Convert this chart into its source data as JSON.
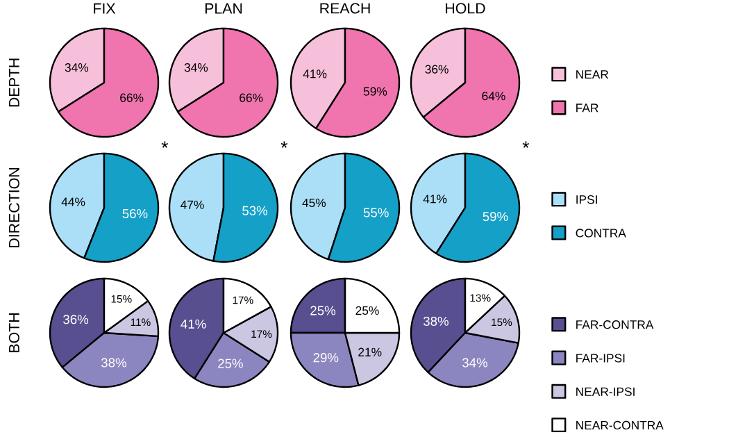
{
  "chart_data": [
    {
      "type": "pie",
      "title": "FIX",
      "ylabel": "DEPTH",
      "categories": [
        null,
        null
      ],
      "values": [
        34,
        66
      ],
      "colors": [
        "#f7c0da",
        "#f075ae"
      ],
      "value_labels": [
        "34%",
        "66%"
      ],
      "annotations": [
        "*"
      ]
    },
    {
      "type": "pie",
      "title": "PLAN",
      "categories": [
        null,
        null
      ],
      "values": [
        34,
        66
      ],
      "colors": [
        "#f7c0da",
        "#f075ae"
      ],
      "value_labels": [
        "34%",
        "66%"
      ],
      "annotations": [
        "*"
      ]
    },
    {
      "type": "pie",
      "title": "REACH",
      "categories": [
        null,
        null
      ],
      "values": [
        41,
        59
      ],
      "colors": [
        "#f7c0da",
        "#f075ae"
      ],
      "value_labels": [
        "41%",
        "59%"
      ]
    },
    {
      "type": "pie",
      "title": "HOLD",
      "categories": [
        "NEAR",
        "FAR"
      ],
      "values": [
        36,
        64
      ],
      "colors": [
        "#f7c0da",
        "#f075ae"
      ],
      "value_labels": [
        "36%",
        "64%"
      ],
      "annotations": [
        "*"
      ],
      "legend": "right"
    },
    {
      "type": "pie",
      "ylabel": "DIRECTION",
      "categories": [
        null,
        null
      ],
      "values": [
        44,
        56
      ],
      "colors": [
        "#aadff7",
        "#15a0c8"
      ],
      "value_labels": [
        "44%",
        "56%"
      ]
    },
    {
      "type": "pie",
      "categories": [
        null,
        null
      ],
      "values": [
        47,
        53
      ],
      "colors": [
        "#aadff7",
        "#15a0c8"
      ],
      "value_labels": [
        "47%",
        "53%"
      ]
    },
    {
      "type": "pie",
      "categories": [
        null,
        null
      ],
      "values": [
        45,
        55
      ],
      "colors": [
        "#aadff7",
        "#15a0c8"
      ],
      "value_labels": [
        "45%",
        "55%"
      ]
    },
    {
      "type": "pie",
      "categories": [
        "IPSI",
        "CONTRA"
      ],
      "values": [
        41,
        59
      ],
      "colors": [
        "#aadff7",
        "#15a0c8"
      ],
      "value_labels": [
        "41%",
        "59%"
      ],
      "legend": "right"
    },
    {
      "type": "pie",
      "ylabel": "BOTH",
      "categories": [
        null,
        null,
        null,
        null
      ],
      "values": [
        36,
        38,
        11,
        15
      ],
      "colors": [
        "#574f90",
        "#8c86c0",
        "#cbc6e2",
        "#ffffff"
      ],
      "value_labels": [
        "36%",
        "38%",
        "11%",
        "15%"
      ]
    },
    {
      "type": "pie",
      "categories": [
        null,
        null,
        null,
        null
      ],
      "values": [
        41,
        25,
        17,
        17
      ],
      "colors": [
        "#574f90",
        "#8c86c0",
        "#cbc6e2",
        "#ffffff"
      ],
      "value_labels": [
        "41%",
        "25%",
        "17%",
        "17%"
      ]
    },
    {
      "type": "pie",
      "categories": [
        null,
        null,
        null,
        null
      ],
      "values": [
        25,
        29,
        21,
        25
      ],
      "colors": [
        "#574f90",
        "#8c86c0",
        "#cbc6e2",
        "#ffffff"
      ],
      "value_labels": [
        "25%",
        "29%",
        "21%",
        "25%"
      ]
    },
    {
      "type": "pie",
      "categories": [
        "FAR-CONTRA",
        "FAR-IPSI",
        "NEAR-IPSI",
        "NEAR-CONTRA"
      ],
      "values": [
        38,
        34,
        15,
        13
      ],
      "colors": [
        "#574f90",
        "#8c86c0",
        "#cbc6e2",
        "#ffffff"
      ],
      "value_labels": [
        "38%",
        "34%",
        "15%",
        "13%"
      ],
      "legend": "right"
    }
  ]
}
